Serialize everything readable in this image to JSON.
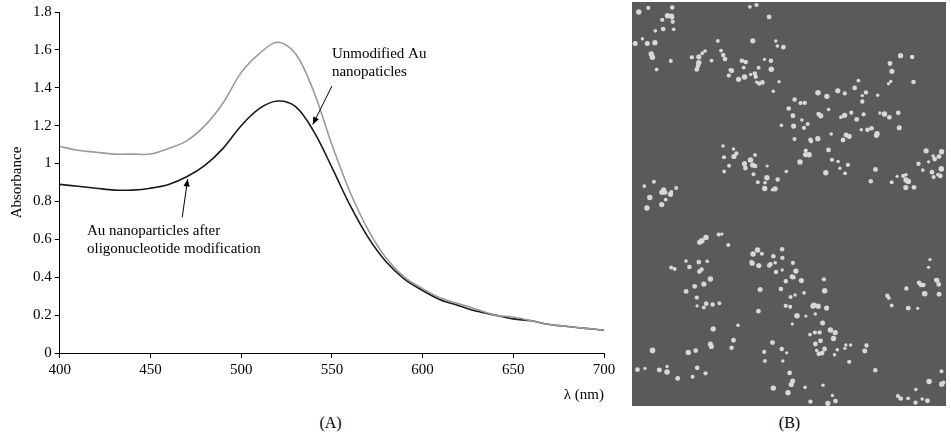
{
  "chart_data": [
    {
      "type": "line",
      "panel_label": "(A)",
      "x_label": "λ (nm)",
      "y_label": "Absorbance",
      "x": [
        400,
        410,
        420,
        430,
        440,
        450,
        460,
        470,
        480,
        490,
        500,
        510,
        520,
        530,
        540,
        550,
        560,
        570,
        580,
        590,
        600,
        610,
        620,
        630,
        640,
        650,
        660,
        670,
        680,
        690,
        700
      ],
      "series": [
        {
          "name": "Unmodified Au nanopaticles",
          "color": "#9a9a9a",
          "values": [
            1.09,
            1.07,
            1.06,
            1.05,
            1.05,
            1.05,
            1.08,
            1.12,
            1.2,
            1.32,
            1.48,
            1.58,
            1.64,
            1.58,
            1.38,
            1.1,
            0.85,
            0.65,
            0.5,
            0.4,
            0.34,
            0.29,
            0.26,
            0.23,
            0.2,
            0.19,
            0.17,
            0.15,
            0.14,
            0.13,
            0.12
          ]
        },
        {
          "name": "Au nanoparticles after oligonucleotide modification",
          "color": "#1a1a1a",
          "values": [
            0.89,
            0.88,
            0.87,
            0.86,
            0.86,
            0.87,
            0.89,
            0.93,
            0.99,
            1.08,
            1.2,
            1.29,
            1.33,
            1.3,
            1.17,
            0.98,
            0.78,
            0.61,
            0.48,
            0.39,
            0.33,
            0.28,
            0.25,
            0.22,
            0.2,
            0.18,
            0.17,
            0.15,
            0.14,
            0.13,
            0.12
          ]
        }
      ],
      "xlim": [
        400,
        700
      ],
      "xticks": [
        400,
        450,
        500,
        550,
        600,
        650,
        700
      ],
      "ylim": [
        0,
        1.8
      ],
      "yticks": [
        0,
        0.2,
        0.4,
        0.6,
        0.8,
        1,
        1.2,
        1.4,
        1.6,
        1.8
      ],
      "grid": false
    },
    {
      "type": "image",
      "panel_label": "(B)"
    }
  ]
}
